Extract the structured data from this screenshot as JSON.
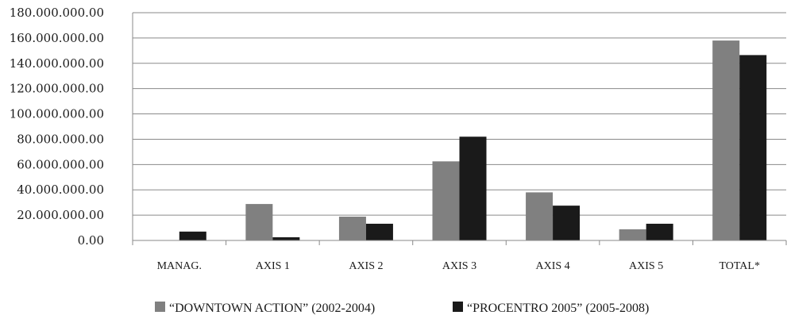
{
  "chart_data": {
    "type": "bar",
    "categories": [
      "MANAG.",
      "AXIS 1",
      "AXIS 2",
      "AXIS 3",
      "AXIS 4",
      "AXIS 5",
      "TOTAL*"
    ],
    "series": [
      {
        "name": "“DOWNTOWN ACTION” (2002-2004)",
        "color": "#808080",
        "values": [
          0,
          28800000,
          18800000,
          62500000,
          38000000,
          8800000,
          158000000
        ]
      },
      {
        "name": "“PROCENTRO 2005” (2005-2008)",
        "color": "#1a1a1a",
        "values": [
          7000000,
          2500000,
          13200000,
          82000000,
          27500000,
          13200000,
          146500000
        ]
      }
    ],
    "ylim": [
      0,
      180000000
    ],
    "yticks": [
      0,
      20000000,
      40000000,
      60000000,
      80000000,
      100000000,
      120000000,
      140000000,
      160000000,
      180000000
    ],
    "ytick_labels": [
      "0.00",
      "20.000.000.00",
      "40.000.000.00",
      "60.000.000.00",
      "80.000.000.00",
      "100.000.000.00",
      "120.000.000.00",
      "140.000.000.00",
      "160.000.000.00",
      "180.000.000.00"
    ],
    "title": "",
    "xlabel": "",
    "ylabel": "",
    "grid": true,
    "legend": "bottom"
  }
}
